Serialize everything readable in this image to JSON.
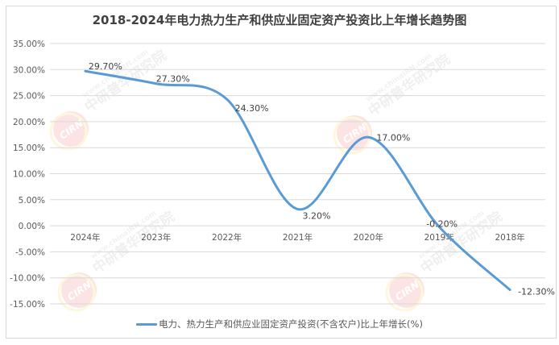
{
  "chart_data": {
    "type": "line",
    "title": "2018-2024年电力热力生产和供应业固定资产投资比上年增长趋势图",
    "xlabel": "",
    "ylabel": "",
    "categories": [
      "2024年",
      "2023年",
      "2022年",
      "2021年",
      "2020年",
      "2019年",
      "2018年"
    ],
    "series": [
      {
        "name": "电力、热力生产和供应业固定资产投资(不含农户)比上年增长(%)",
        "values": [
          29.7,
          27.3,
          24.3,
          3.2,
          17.0,
          -0.2,
          -12.3
        ],
        "labels": [
          "29.70%",
          "27.30%",
          "24.30%",
          "3.20%",
          "17.00%",
          "-0.20%",
          "-12.30%"
        ],
        "color": "#5b9bd5",
        "smooth": true
      }
    ],
    "ylim": [
      -15,
      35
    ],
    "yticks": [
      "35.00%",
      "30.00%",
      "25.00%",
      "20.00%",
      "15.00%",
      "10.00%",
      "5.00%",
      "0.00%",
      "-5.00%",
      "-10.00%",
      "-15.00%"
    ],
    "grid": true,
    "legend_position": "bottom"
  },
  "title": "2018-2024年电力热力生产和供应业固定资产投资比上年增长趋势图",
  "legend": {
    "label": "电力、热力生产和供应业固定资产投资(不含农户)比上年增长(%)",
    "color": "#5b9bd5"
  },
  "colors": {
    "line": "#5b9bd5",
    "grid": "#d9d9d9",
    "text": "#595959",
    "title": "#404040"
  },
  "watermark": {
    "logo_text": "CIRN",
    "cn_text": "中研普华研究院",
    "url_text": "www.chinaIRN.com"
  }
}
